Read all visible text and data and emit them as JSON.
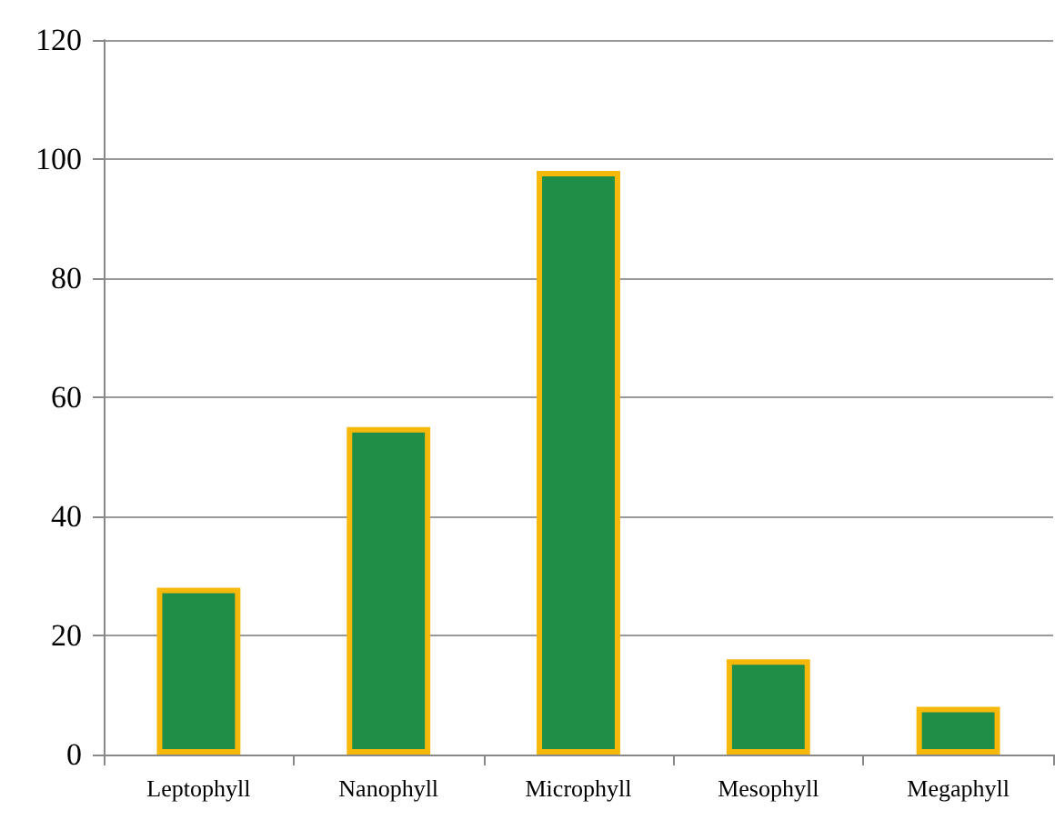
{
  "chart_data": {
    "type": "bar",
    "categories": [
      "Leptophyll",
      "Nanophyll",
      "Microphyll",
      "Mesophyll",
      "Megaphyll"
    ],
    "values": [
      28,
      55,
      98,
      16,
      8
    ],
    "color": "#208e46",
    "ylim": [
      0,
      120
    ],
    "yticks": [
      0,
      20,
      40,
      60,
      80,
      100,
      120
    ],
    "grid": "y"
  }
}
